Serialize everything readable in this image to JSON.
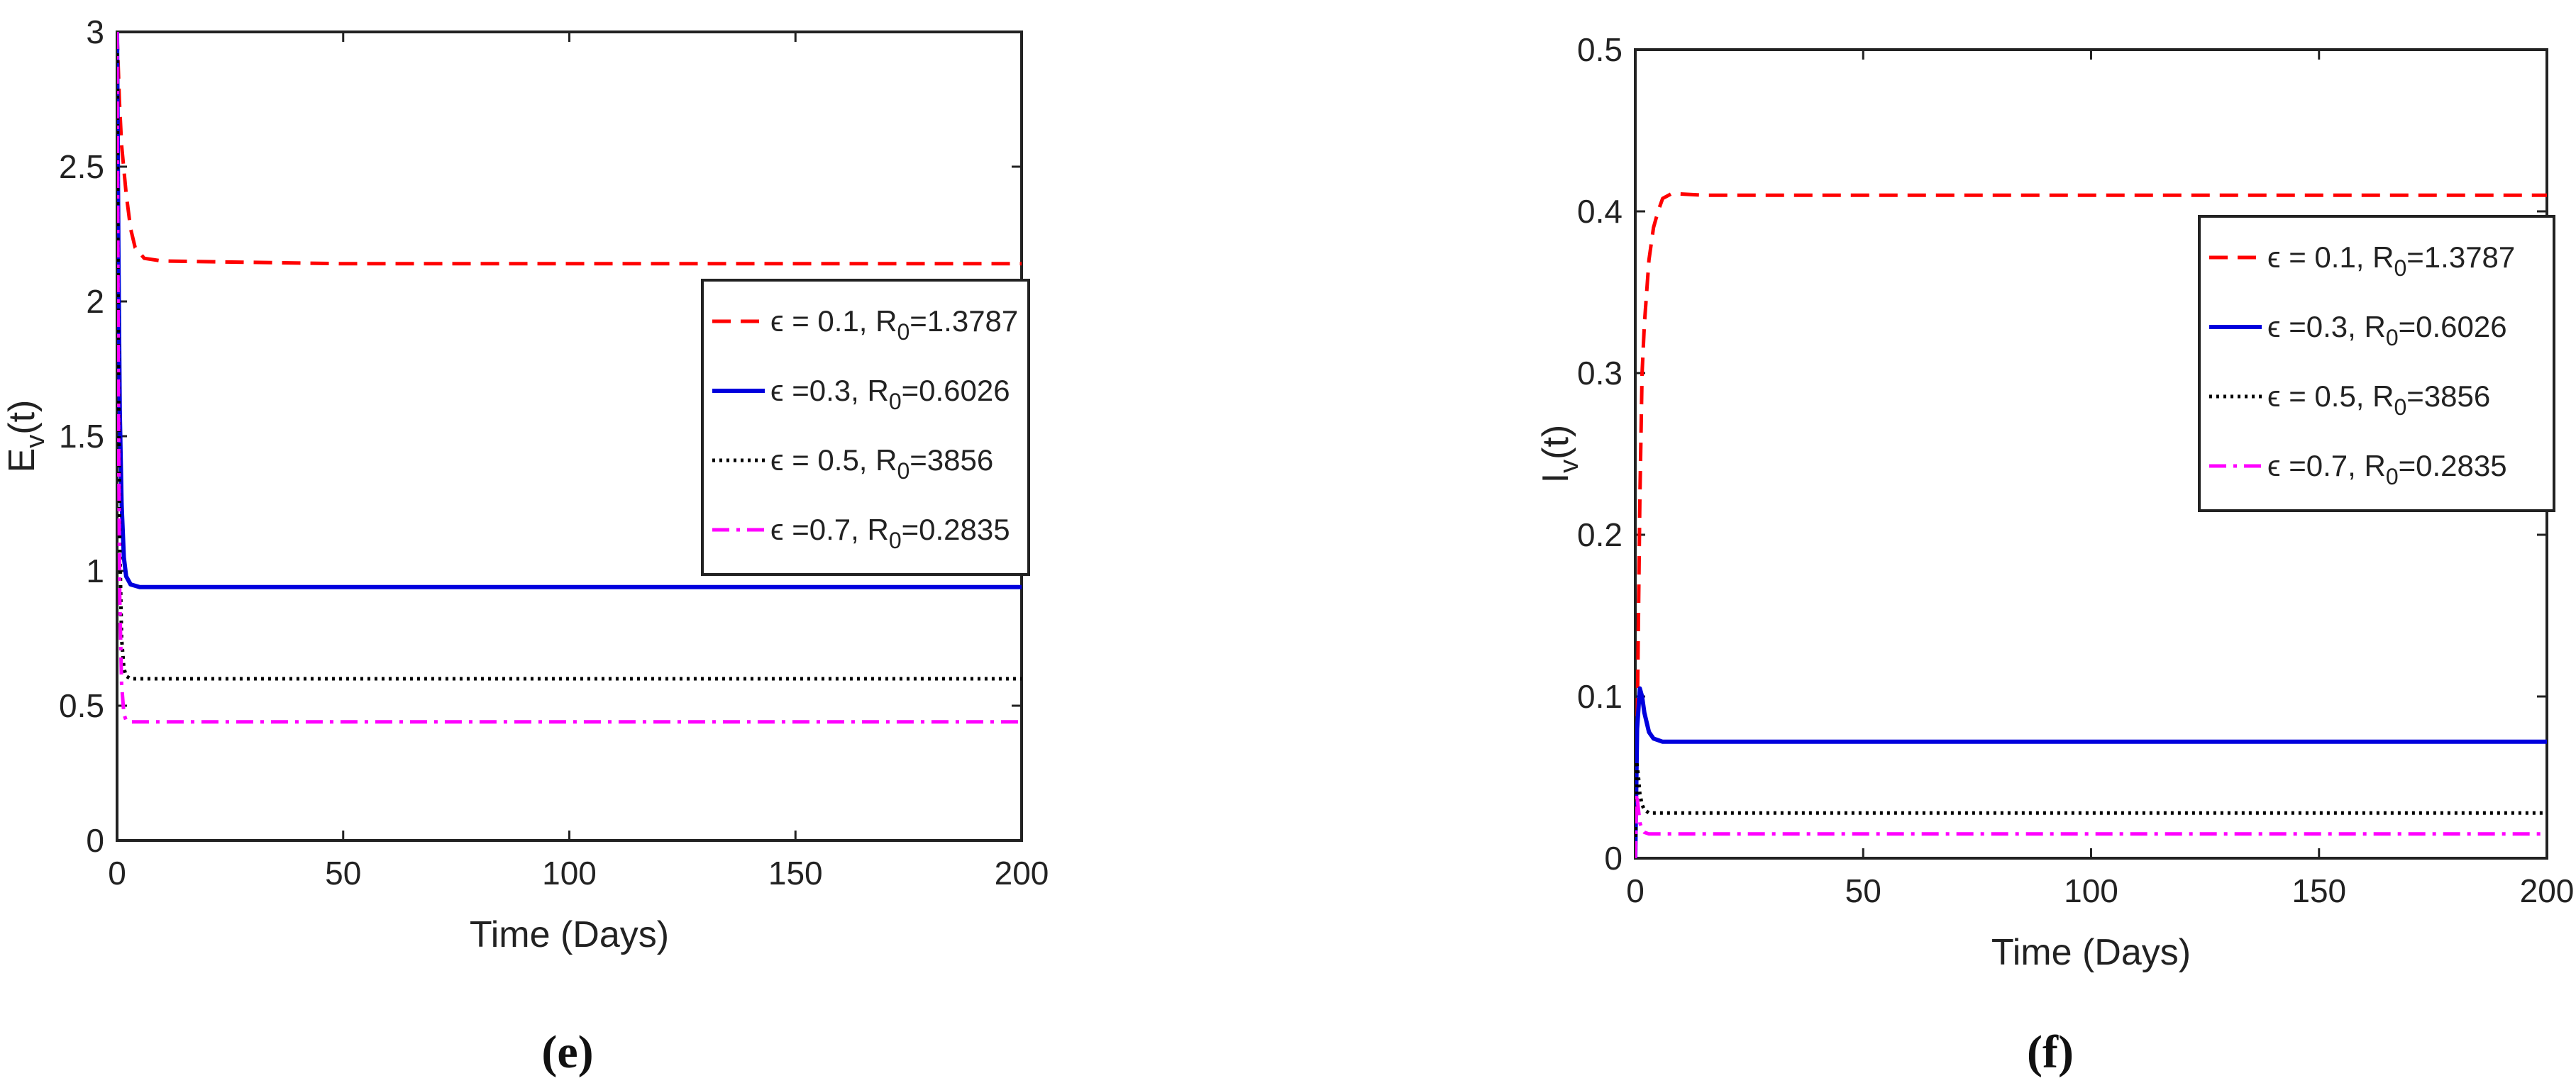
{
  "chart_data": [
    {
      "type": "line",
      "panel_label": "(e)",
      "xlabel": "Time (Days)",
      "ylabel_main": "E",
      "ylabel_sub": "v",
      "ylabel_tail": "(t)",
      "xlim": [
        0,
        200
      ],
      "ylim": [
        0,
        3
      ],
      "xticks": [
        0,
        50,
        100,
        150,
        200
      ],
      "yticks": [
        0,
        0.5,
        1,
        1.5,
        2,
        2.5,
        3
      ],
      "ytick_labels": [
        "0",
        "0.5",
        "1",
        "1.5",
        "2",
        "2.5",
        "3"
      ],
      "legend_position": "center-right",
      "grid": false,
      "series": [
        {
          "name": "ϵ = 0.1, R0=1.3787",
          "legend_pre": "ϵ = 0.1, R",
          "legend_sub": "0",
          "legend_post": "=1.3787",
          "color": "#ff0000",
          "dash": "dashed",
          "points": [
            [
              0,
              3.0
            ],
            [
              0.5,
              2.75
            ],
            [
              1,
              2.58
            ],
            [
              2,
              2.4
            ],
            [
              3,
              2.27
            ],
            [
              4,
              2.2
            ],
            [
              6,
              2.16
            ],
            [
              10,
              2.15
            ],
            [
              50,
              2.14
            ],
            [
              100,
              2.14
            ],
            [
              150,
              2.14
            ],
            [
              200,
              2.14
            ]
          ]
        },
        {
          "name": "ϵ =0.3, R0=0.6026",
          "legend_pre": "ϵ =0.3, R",
          "legend_sub": "0",
          "legend_post": "=0.6026",
          "color": "#0000dd",
          "dash": "solid",
          "points": [
            [
              0,
              3.0
            ],
            [
              0.3,
              2.2
            ],
            [
              0.6,
              1.6
            ],
            [
              1,
              1.25
            ],
            [
              1.5,
              1.05
            ],
            [
              2,
              0.98
            ],
            [
              3,
              0.95
            ],
            [
              5,
              0.94
            ],
            [
              50,
              0.94
            ],
            [
              100,
              0.94
            ],
            [
              150,
              0.94
            ],
            [
              200,
              0.94
            ]
          ]
        },
        {
          "name": "ϵ = 0.5, R0=3856",
          "legend_pre": "ϵ = 0.5, R",
          "legend_sub": "0",
          "legend_post": "=3856",
          "color": "#000000",
          "dash": "dotted",
          "points": [
            [
              0,
              3.0
            ],
            [
              0.3,
              1.8
            ],
            [
              0.6,
              1.1
            ],
            [
              1,
              0.75
            ],
            [
              1.5,
              0.64
            ],
            [
              2,
              0.61
            ],
            [
              3,
              0.6
            ],
            [
              50,
              0.6
            ],
            [
              100,
              0.6
            ],
            [
              150,
              0.6
            ],
            [
              200,
              0.6
            ]
          ]
        },
        {
          "name": "ϵ =0.7, R0=0.2835",
          "legend_pre": "ϵ =0.7, R",
          "legend_sub": "0",
          "legend_post": "=0.2835",
          "color": "#ff00ff",
          "dash": "dashdot",
          "points": [
            [
              0,
              3.0
            ],
            [
              0.3,
              1.6
            ],
            [
              0.6,
              0.9
            ],
            [
              1,
              0.58
            ],
            [
              1.5,
              0.47
            ],
            [
              2,
              0.445
            ],
            [
              3,
              0.44
            ],
            [
              50,
              0.44
            ],
            [
              100,
              0.44
            ],
            [
              150,
              0.44
            ],
            [
              200,
              0.44
            ]
          ]
        }
      ]
    },
    {
      "type": "line",
      "panel_label": "(f)",
      "xlabel": "Time (Days)",
      "ylabel_main": "I",
      "ylabel_sub": "v",
      "ylabel_tail": "(t)",
      "xlim": [
        0,
        200
      ],
      "ylim": [
        0,
        0.5
      ],
      "xticks": [
        0,
        50,
        100,
        150,
        200
      ],
      "yticks": [
        0,
        0.1,
        0.2,
        0.3,
        0.4,
        0.5
      ],
      "ytick_labels": [
        "0",
        "0.1",
        "0.2",
        "0.3",
        "0.4",
        "0.5"
      ],
      "legend_position": "top-right",
      "grid": false,
      "series": [
        {
          "name": "ϵ = 0.1, R0=1.3787",
          "legend_pre": "ϵ = 0.1, R",
          "legend_sub": "0",
          "legend_post": "=1.3787",
          "color": "#ff0000",
          "dash": "dashed",
          "points": [
            [
              0,
              0.0
            ],
            [
              0.5,
              0.1
            ],
            [
              1,
              0.22
            ],
            [
              1.5,
              0.3
            ],
            [
              2,
              0.33
            ],
            [
              3,
              0.37
            ],
            [
              4,
              0.39
            ],
            [
              5,
              0.4
            ],
            [
              6,
              0.408
            ],
            [
              8,
              0.411
            ],
            [
              15,
              0.41
            ],
            [
              50,
              0.41
            ],
            [
              100,
              0.41
            ],
            [
              150,
              0.41
            ],
            [
              200,
              0.41
            ]
          ]
        },
        {
          "name": "ϵ =0.3, R0=0.6026",
          "legend_pre": "ϵ =0.3, R",
          "legend_sub": "0",
          "legend_post": "=0.6026",
          "color": "#0000dd",
          "dash": "solid",
          "points": [
            [
              0,
              0.0
            ],
            [
              0.4,
              0.08
            ],
            [
              1,
              0.105
            ],
            [
              1.5,
              0.1
            ],
            [
              2,
              0.09
            ],
            [
              3,
              0.078
            ],
            [
              4,
              0.074
            ],
            [
              6,
              0.072
            ],
            [
              10,
              0.072
            ],
            [
              50,
              0.072
            ],
            [
              100,
              0.072
            ],
            [
              150,
              0.072
            ],
            [
              200,
              0.072
            ]
          ]
        },
        {
          "name": "ϵ = 0.5, R0=3856",
          "legend_pre": "ϵ = 0.5, R",
          "legend_sub": "0",
          "legend_post": "=3856",
          "color": "#000000",
          "dash": "dotted",
          "points": [
            [
              0,
              0.0
            ],
            [
              0.3,
              0.06
            ],
            [
              0.7,
              0.05
            ],
            [
              1,
              0.04
            ],
            [
              1.5,
              0.033
            ],
            [
              2,
              0.03
            ],
            [
              3,
              0.028
            ],
            [
              50,
              0.028
            ],
            [
              100,
              0.028
            ],
            [
              150,
              0.028
            ],
            [
              200,
              0.028
            ]
          ]
        },
        {
          "name": "ϵ =0.7, R0=0.2835",
          "legend_pre": "ϵ =0.7, R",
          "legend_sub": "0",
          "legend_post": "=0.2835",
          "color": "#ff00ff",
          "dash": "dashdot",
          "points": [
            [
              0,
              0.0
            ],
            [
              0.3,
              0.04
            ],
            [
              0.7,
              0.03
            ],
            [
              1,
              0.022
            ],
            [
              1.5,
              0.018
            ],
            [
              2,
              0.016
            ],
            [
              3,
              0.015
            ],
            [
              50,
              0.015
            ],
            [
              100,
              0.015
            ],
            [
              150,
              0.015
            ],
            [
              200,
              0.015
            ]
          ]
        }
      ]
    }
  ]
}
